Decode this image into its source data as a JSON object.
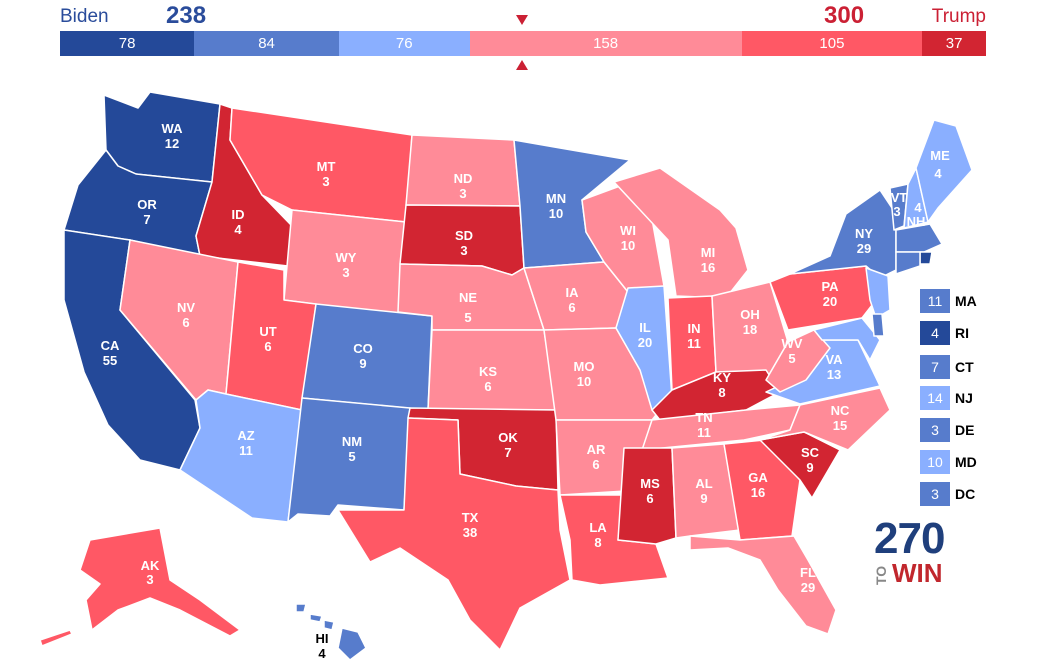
{
  "header": {
    "biden_label": "Biden",
    "biden_total": "238",
    "trump_label": "Trump",
    "trump_total": "300"
  },
  "tally_bar": [
    {
      "value": "78",
      "votes": 78,
      "color": "#244999"
    },
    {
      "value": "84",
      "votes": 84,
      "color": "#577ccc"
    },
    {
      "value": "76",
      "votes": 76,
      "color": "#8aafff"
    },
    {
      "value": "158",
      "votes": 158,
      "color": "#ff8b98"
    },
    {
      "value": "105",
      "votes": 105,
      "color": "#ff5865"
    },
    {
      "value": "37",
      "votes": 37,
      "color": "#d22532"
    }
  ],
  "colors": {
    "safe_dem": "#244999",
    "likely_dem": "#577ccc",
    "lean_dem": "#8aafff",
    "lean_rep": "#ff8b98",
    "likely_rep": "#ff5865",
    "safe_rep": "#d22532"
  },
  "states": {
    "WA": {
      "abbr": "WA",
      "ev": "12"
    },
    "OR": {
      "abbr": "OR",
      "ev": "7"
    },
    "CA": {
      "abbr": "CA",
      "ev": "55"
    },
    "ID": {
      "abbr": "ID",
      "ev": "4"
    },
    "NV": {
      "abbr": "NV",
      "ev": "6"
    },
    "MT": {
      "abbr": "MT",
      "ev": "3"
    },
    "WY": {
      "abbr": "WY",
      "ev": "3"
    },
    "UT": {
      "abbr": "UT",
      "ev": "6"
    },
    "AZ": {
      "abbr": "AZ",
      "ev": "11"
    },
    "CO": {
      "abbr": "CO",
      "ev": "9"
    },
    "NM": {
      "abbr": "NM",
      "ev": "5"
    },
    "ND": {
      "abbr": "ND",
      "ev": "3"
    },
    "SD": {
      "abbr": "SD",
      "ev": "3"
    },
    "NE": {
      "abbr": "NE",
      "ev": "5"
    },
    "KS": {
      "abbr": "KS",
      "ev": "6"
    },
    "OK": {
      "abbr": "OK",
      "ev": "7"
    },
    "TX": {
      "abbr": "TX",
      "ev": "38"
    },
    "MN": {
      "abbr": "MN",
      "ev": "10"
    },
    "IA": {
      "abbr": "IA",
      "ev": "6"
    },
    "MO": {
      "abbr": "MO",
      "ev": "10"
    },
    "AR": {
      "abbr": "AR",
      "ev": "6"
    },
    "LA": {
      "abbr": "LA",
      "ev": "8"
    },
    "WI": {
      "abbr": "WI",
      "ev": "10"
    },
    "IL": {
      "abbr": "IL",
      "ev": "20"
    },
    "MI": {
      "abbr": "MI",
      "ev": "16"
    },
    "IN": {
      "abbr": "IN",
      "ev": "11"
    },
    "OH": {
      "abbr": "OH",
      "ev": "18"
    },
    "KY": {
      "abbr": "KY",
      "ev": "8"
    },
    "TN": {
      "abbr": "TN",
      "ev": "11"
    },
    "MS": {
      "abbr": "MS",
      "ev": "6"
    },
    "AL": {
      "abbr": "AL",
      "ev": "9"
    },
    "GA": {
      "abbr": "GA",
      "ev": "16"
    },
    "FL": {
      "abbr": "FL",
      "ev": "29"
    },
    "SC": {
      "abbr": "SC",
      "ev": "9"
    },
    "NC": {
      "abbr": "NC",
      "ev": "15"
    },
    "VA": {
      "abbr": "VA",
      "ev": "13"
    },
    "WV": {
      "abbr": "WV",
      "ev": "5"
    },
    "PA": {
      "abbr": "PA",
      "ev": "20"
    },
    "NY": {
      "abbr": "NY",
      "ev": "29"
    },
    "VT": {
      "abbr": "VT",
      "ev": "3"
    },
    "NH": {
      "abbr": "NH",
      "ev": "4"
    },
    "ME": {
      "abbr": "ME",
      "ev": "4"
    },
    "AK": {
      "abbr": "AK",
      "ev": "3"
    },
    "HI": {
      "abbr": "HI",
      "ev": "4"
    }
  },
  "small_states": [
    {
      "abbr": "MA",
      "ev": "11",
      "color": "#577ccc"
    },
    {
      "abbr": "RI",
      "ev": "4",
      "color": "#244999"
    },
    {
      "abbr": "CT",
      "ev": "7",
      "color": "#577ccc"
    },
    {
      "abbr": "NJ",
      "ev": "14",
      "color": "#8aafff"
    },
    {
      "abbr": "DE",
      "ev": "3",
      "color": "#577ccc"
    },
    {
      "abbr": "MD",
      "ev": "10",
      "color": "#8aafff"
    },
    {
      "abbr": "DC",
      "ev": "3",
      "color": "#577ccc"
    }
  ],
  "logo": {
    "number": "270",
    "to": "TO",
    "win": "WIN"
  }
}
